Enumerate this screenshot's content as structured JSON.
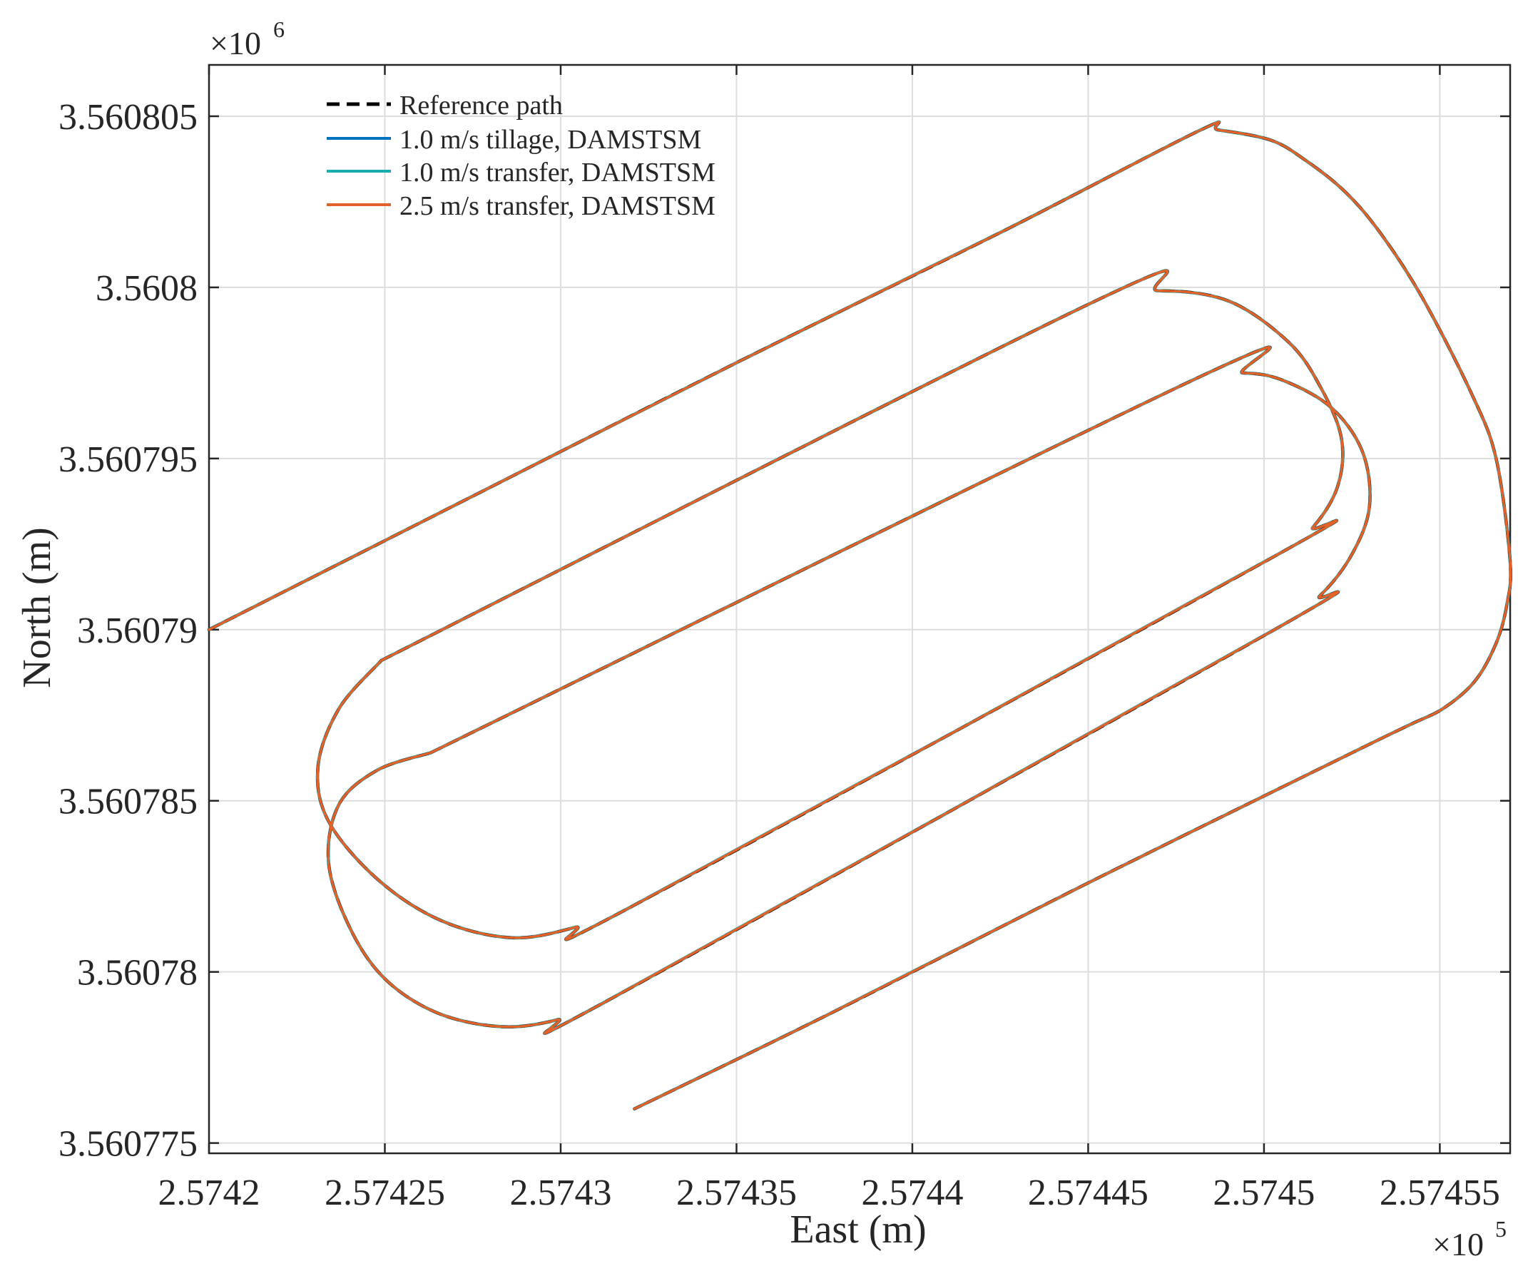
{
  "chart_data": {
    "type": "line",
    "title": "",
    "xlabel": "East (m)",
    "ylabel": "North (m)",
    "x_multiplier": "×10^5",
    "y_multiplier": "×10^6",
    "xlim": [
      257420,
      257457
    ],
    "ylim": [
      3560774.7,
      3560806.5
    ],
    "xticks": [
      257420,
      257425,
      257430,
      257435,
      257440,
      257445,
      257450,
      257455
    ],
    "xtick_labels": [
      "2.5742",
      "2.57425",
      "2.5743",
      "2.57435",
      "2.5744",
      "2.57445",
      "2.5745",
      "2.57455"
    ],
    "yticks": [
      3560775,
      3560780,
      3560785,
      3560790,
      3560795,
      3560800,
      3560805
    ],
    "ytick_labels": [
      "3.560775",
      "3.56078",
      "3.560785",
      "3.56079",
      "3.560795",
      "3.5608",
      "3.560805"
    ],
    "grid": true,
    "legend_position": "top-left",
    "path_vertices_x": [
      257420.0,
      257448.2,
      257448.7,
      257450.2,
      257451.2,
      257452.3,
      257453.3,
      257454.5,
      257455.9,
      257456.6,
      257457.0,
      257456.9,
      257456.6,
      257456.0,
      257455.1,
      257454.1,
      257452.5,
      257432.1
    ],
    "path_vertices_y": [
      3560790.0,
      3560804.6,
      3560804.6,
      3560804.3,
      3560803.7,
      3560802.8,
      3560801.6,
      3560799.7,
      3560796.9,
      3560795.0,
      3560792.0,
      3560790.7,
      3560789.6,
      3560788.5,
      3560787.7,
      3560787.2,
      3560786.4,
      3560776.0
    ],
    "paths": [
      {
        "name": "Reference path",
        "color": "#000000",
        "style": "dashed",
        "x": [
          257420.0,
          257427.5,
          257435.0,
          257442.5,
          257448.2,
          257448.7,
          257450.2,
          257451.2,
          257452.3,
          257453.3,
          257454.5,
          257455.9,
          257456.6,
          257457.0,
          257456.9,
          257456.6,
          257456.0,
          257455.1,
          257454.1,
          257452.5,
          257445.0,
          257437.5,
          257432.1
        ],
        "y": [
          3560790.0,
          3560793.9,
          3560797.8,
          3560801.6,
          3560804.6,
          3560804.6,
          3560804.3,
          3560803.7,
          3560802.8,
          3560801.6,
          3560799.7,
          3560796.9,
          3560795.0,
          3560792.0,
          3560790.7,
          3560789.6,
          3560788.5,
          3560787.7,
          3560787.2,
          3560786.4,
          3560782.6,
          3560778.7,
          3560776.0
        ]
      },
      {
        "name": "1.0 m/s tillage, DAMSTSM",
        "color": "#0072BD",
        "style": "solid"
      },
      {
        "name": "1.0 m/s transfer, DAMSTSM",
        "color": "#1AADB0",
        "style": "solid"
      },
      {
        "name": "2.5 m/s transfer, DAMSTSM",
        "color": "#E2622A",
        "style": "solid"
      }
    ]
  }
}
